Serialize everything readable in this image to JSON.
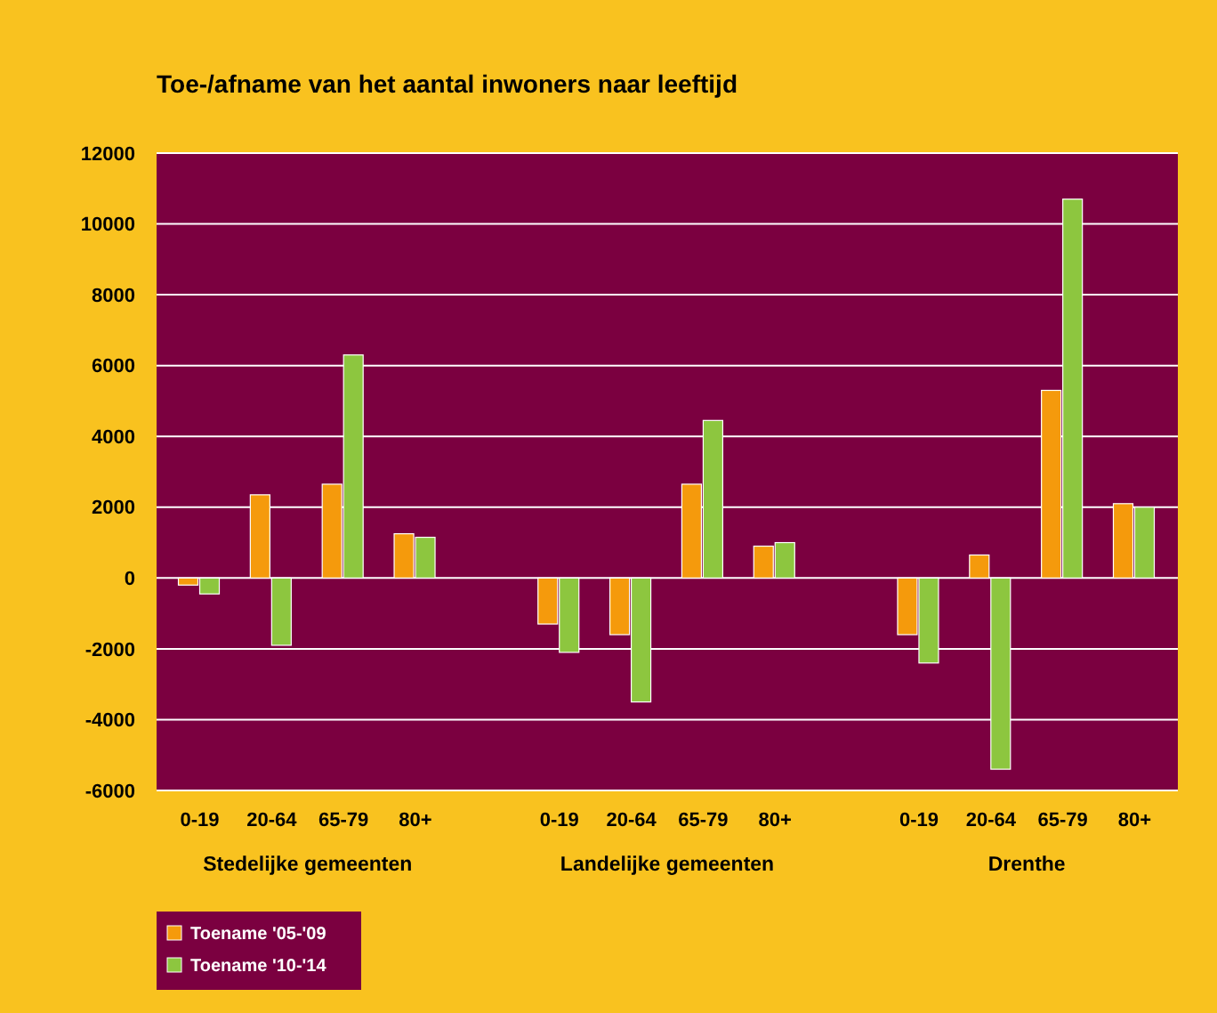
{
  "chart_data": {
    "type": "bar",
    "title": "Toe-/afname van het aantal inwoners naar leeftijd",
    "categories": [
      "0-19",
      "20-64",
      "65-79",
      "80+",
      null,
      "0-19",
      "20-64",
      "65-79",
      "80+",
      null,
      "0-19",
      "20-64",
      "65-79",
      "80+"
    ],
    "series": [
      {
        "name": "Toename '05-'09",
        "color": "#f59a0c",
        "values": [
          -200,
          2350,
          2650,
          1250,
          null,
          -1300,
          -1600,
          2650,
          900,
          null,
          -1600,
          650,
          5300,
          2100
        ]
      },
      {
        "name": "Toename '10-'14",
        "color": "#8dc63f",
        "values": [
          -450,
          -1900,
          6300,
          1150,
          null,
          -2100,
          -3500,
          4450,
          1000,
          null,
          -2400,
          -5400,
          10700,
          2000
        ]
      }
    ],
    "ylim": [
      -6000,
      12000
    ],
    "yticks": [
      -6000,
      -4000,
      -2000,
      0,
      2000,
      4000,
      6000,
      8000,
      10000,
      12000
    ],
    "grid": "y",
    "legend": "bottom left",
    "annotations": [
      "Stedelijke gemeenten",
      "Landelijke gemeenten",
      "Drenthe"
    ]
  }
}
